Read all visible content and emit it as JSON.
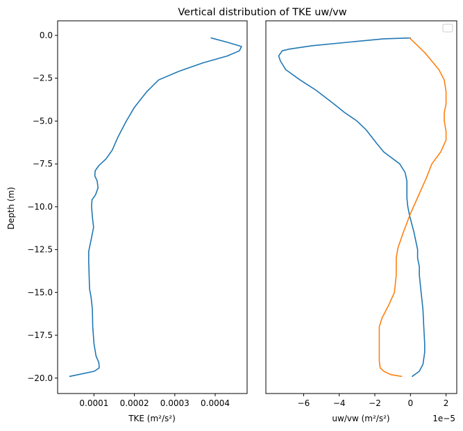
{
  "chart_data": {
    "title": "Vertical distribution of TKE uw/vw",
    "ylabel": "Depth (m)",
    "ylim": [
      -20.9,
      0.85
    ],
    "y_ticks": [
      0.0,
      -2.5,
      -5.0,
      -7.5,
      -10.0,
      -12.5,
      -15.0,
      -17.5,
      -20.0
    ],
    "y_tick_labels": [
      "0.0",
      "−2.5",
      "−5.0",
      "−7.5",
      "−10.0",
      "−12.5",
      "−15.0",
      "−17.5",
      "−20.0"
    ],
    "panels": [
      {
        "type": "line",
        "xlabel": "TKE (m²/s²)",
        "xlim": [
          1e-05,
          0.000479
        ],
        "x_ticks": [
          0.0001,
          0.0002,
          0.0003,
          0.0004
        ],
        "x_tick_labels": [
          "0.0001",
          "0.0002",
          "0.0003",
          "0.0004"
        ],
        "series": [
          {
            "color": "#1f77b4",
            "x": [
              0.00039,
              0.00043,
              0.000465,
              0.00046,
              0.00043,
              0.00037,
              0.00031,
              0.00026,
              0.00023,
              0.0002,
              0.00018,
              0.00016,
              0.000145,
              0.00013,
              0.000112,
              0.000103,
              0.000102,
              0.000108,
              0.00011,
              0.000104,
              9.5e-05,
              9.4e-05,
              9.6e-05,
              9.9e-05,
              9.4e-05,
              8.7e-05,
              8.7e-05,
              8.8e-05,
              8.9e-05,
              9.3e-05,
              9.6e-05,
              9.7e-05,
              0.0001,
              0.000105,
              0.000112,
              0.000113,
              0.000101,
              4e-05
            ],
            "y": [
              -0.15,
              -0.4,
              -0.65,
              -0.9,
              -1.2,
              -1.6,
              -2.1,
              -2.6,
              -3.3,
              -4.2,
              -5.0,
              -5.9,
              -6.7,
              -7.2,
              -7.6,
              -7.9,
              -8.2,
              -8.5,
              -8.9,
              -9.3,
              -9.6,
              -10.0,
              -10.6,
              -11.2,
              -11.8,
              -12.6,
              -13.2,
              -14.0,
              -14.8,
              -15.3,
              -16.0,
              -17.0,
              -18.0,
              -18.7,
              -19.1,
              -19.4,
              -19.6,
              -19.9
            ]
          }
        ]
      },
      {
        "type": "line",
        "xlabel": "uw/vw (m²/s²)",
        "x_scale_label": "1e−5",
        "xlim": [
          -8.12,
          2.6
        ],
        "x_ticks": [
          -6,
          -4,
          -2,
          0,
          2
        ],
        "x_tick_labels": [
          "−6",
          "−4",
          "−2",
          "0",
          "2"
        ],
        "legend": "top-right",
        "series": [
          {
            "color": "#1f77b4",
            "x": [
              0.0,
              -1.5,
              -5.5,
              -6.8,
              -7.2,
              -7.4,
              -7.3,
              -7.0,
              -6.2,
              -5.3,
              -4.3,
              -3.7,
              -3.0,
              -2.5,
              -1.9,
              -1.5,
              -0.6,
              -0.3,
              -0.2,
              -0.2,
              -0.2,
              -0.15,
              -0.05,
              0.2,
              0.4,
              0.4,
              0.5,
              0.5,
              0.55,
              0.6,
              0.7,
              0.75,
              0.8,
              0.8,
              0.7,
              0.5,
              0.1
            ],
            "y": [
              -0.15,
              -0.2,
              -0.6,
              -0.8,
              -0.9,
              -1.2,
              -1.5,
              -2.0,
              -2.6,
              -3.2,
              -4.0,
              -4.5,
              -5.0,
              -5.5,
              -6.3,
              -6.8,
              -7.5,
              -8.0,
              -8.5,
              -9.0,
              -9.5,
              -10.0,
              -10.5,
              -11.5,
              -12.5,
              -13.0,
              -13.5,
              -14.0,
              -14.5,
              -15.0,
              -16.0,
              -17.0,
              -18.0,
              -18.5,
              -19.2,
              -19.6,
              -19.9
            ]
          },
          {
            "color": "#ff7f0e",
            "x": [
              -0.05,
              0.3,
              0.8,
              1.2,
              1.6,
              1.9,
              2.0,
              2.0,
              1.9,
              1.9,
              2.0,
              2.0,
              1.7,
              1.2,
              0.9,
              0.6,
              0.3,
              0.0,
              -0.4,
              -0.7,
              -0.8,
              -0.8,
              -0.9,
              -1.2,
              -1.6,
              -1.75,
              -1.75,
              -1.75,
              -1.7,
              -1.5,
              -1.1,
              -0.5
            ],
            "y": [
              -0.15,
              -0.5,
              -1.0,
              -1.5,
              -2.0,
              -2.6,
              -3.3,
              -4.0,
              -4.5,
              -5.0,
              -5.6,
              -6.1,
              -6.8,
              -7.5,
              -8.3,
              -9.0,
              -9.7,
              -10.4,
              -11.5,
              -12.4,
              -13.0,
              -14.0,
              -15.0,
              -15.7,
              -16.5,
              -17.0,
              -18.0,
              -19.0,
              -19.4,
              -19.6,
              -19.8,
              -19.9
            ]
          }
        ]
      }
    ]
  }
}
